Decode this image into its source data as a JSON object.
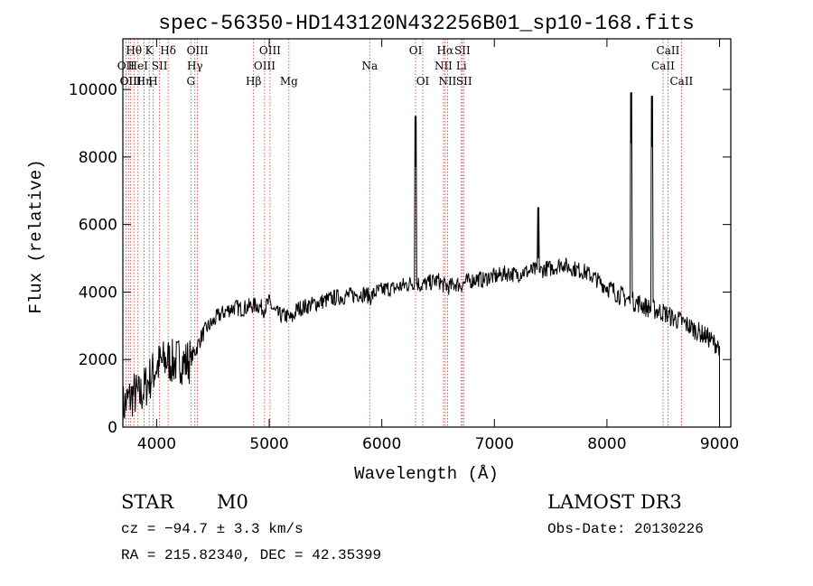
{
  "chart_data": {
    "type": "line",
    "title": "spec-56350-HD143120N432256B01_sp10-168.fits",
    "xlabel": "Wavelength (Å)",
    "ylabel": "Flux (relative)",
    "xlim": [
      3700,
      9100
    ],
    "ylim": [
      0,
      11500
    ],
    "x_ticks": [
      4000,
      5000,
      6000,
      7000,
      8000,
      9000
    ],
    "y_ticks": [
      0,
      2000,
      4000,
      6000,
      8000,
      10000
    ],
    "series": [
      {
        "name": "spectrum",
        "x": [
          3700,
          3750,
          3800,
          3850,
          3900,
          3950,
          4000,
          4050,
          4100,
          4150,
          4200,
          4250,
          4300,
          4350,
          4400,
          4450,
          4500,
          4550,
          4600,
          4650,
          4700,
          4750,
          4800,
          4850,
          4900,
          4950,
          5000,
          5050,
          5100,
          5150,
          5200,
          5250,
          5300,
          5350,
          5400,
          5450,
          5500,
          5550,
          5600,
          5650,
          5700,
          5750,
          5800,
          5850,
          5900,
          5950,
          6000,
          6050,
          6100,
          6150,
          6200,
          6250,
          6300,
          6350,
          6400,
          6450,
          6500,
          6550,
          6600,
          6650,
          6700,
          6750,
          6800,
          6850,
          6900,
          6950,
          7000,
          7050,
          7100,
          7150,
          7200,
          7250,
          7300,
          7350,
          7400,
          7450,
          7500,
          7550,
          7600,
          7650,
          7700,
          7750,
          7800,
          7850,
          7900,
          7950,
          8000,
          8050,
          8100,
          8150,
          8200,
          8250,
          8300,
          8350,
          8400,
          8450,
          8500,
          8550,
          8600,
          8650,
          8700,
          8750,
          8800,
          8850,
          8900,
          8950,
          9000
        ],
        "values": [
          600,
          800,
          1000,
          900,
          1200,
          1500,
          1800,
          1900,
          2000,
          1900,
          2000,
          1900,
          2000,
          2300,
          2700,
          2950,
          3100,
          3300,
          3400,
          3500,
          3550,
          3500,
          3550,
          3600,
          3600,
          3500,
          3700,
          3400,
          3300,
          3300,
          3200,
          3500,
          3550,
          3600,
          3650,
          3700,
          3750,
          3800,
          3850,
          3850,
          3900,
          3900,
          3950,
          3950,
          3850,
          4000,
          4050,
          4100,
          4100,
          4150,
          4200,
          4250,
          4300,
          4200,
          4250,
          4300,
          4350,
          4200,
          4150,
          4250,
          4200,
          4300,
          4350,
          4400,
          4350,
          4450,
          4450,
          4500,
          4550,
          4550,
          4500,
          4600,
          4600,
          4650,
          4600,
          4700,
          4700,
          4750,
          4850,
          4750,
          4700,
          4650,
          4600,
          4500,
          4400,
          4250,
          4150,
          4050,
          3950,
          3850,
          3750,
          3700,
          3650,
          3550,
          3500,
          3450,
          3400,
          3300,
          3200,
          3150,
          3050,
          2950,
          2850,
          2750,
          2650,
          2500,
          2400
        ]
      }
    ],
    "spikes": [
      {
        "x": 6300,
        "value": 9200
      },
      {
        "x": 7390,
        "value": 6500
      },
      {
        "x": 8215,
        "value": 9900
      },
      {
        "x": 8400,
        "value": 9800
      }
    ],
    "line_markers": [
      {
        "wl": 3727,
        "label": "OII",
        "row": 2
      },
      {
        "wl": 3750,
        "label": "OII",
        "row": 3
      },
      {
        "wl": 3770,
        "label": "OIII",
        "row": 3
      },
      {
        "wl": 3798,
        "label": "Hθ",
        "row": 1
      },
      {
        "wl": 3835,
        "label": "HeI",
        "row": 2
      },
      {
        "wl": 3889,
        "label": "Hη",
        "row": 3
      },
      {
        "wl": 3934,
        "label": "K",
        "row": 1
      },
      {
        "wl": 3969,
        "label": "H",
        "row": 3
      },
      {
        "wl": 4026,
        "label": "SII",
        "row": 2
      },
      {
        "wl": 4102,
        "label": "Hδ",
        "row": 1
      },
      {
        "wl": 4304,
        "label": "G",
        "row": 3
      },
      {
        "wl": 4340,
        "label": "Hγ",
        "row": 2
      },
      {
        "wl": 4363,
        "label": "OIII",
        "row": 1
      },
      {
        "wl": 4861,
        "label": "Hβ",
        "row": 3
      },
      {
        "wl": 4959,
        "label": "OIII",
        "row": 2
      },
      {
        "wl": 5007,
        "label": "OIII",
        "row": 1
      },
      {
        "wl": 5175,
        "label": "Mg",
        "row": 3
      },
      {
        "wl": 5893,
        "label": "Na",
        "row": 2
      },
      {
        "wl": 6300,
        "label": "OI",
        "row": 1
      },
      {
        "wl": 6364,
        "label": "OI",
        "row": 3
      },
      {
        "wl": 6548,
        "label": "NII",
        "row": 2
      },
      {
        "wl": 6563,
        "label": "Hα",
        "row": 1
      },
      {
        "wl": 6584,
        "label": "NII",
        "row": 3
      },
      {
        "wl": 6707,
        "label": "Li",
        "row": 2
      },
      {
        "wl": 6716,
        "label": "SII",
        "row": 1
      },
      {
        "wl": 6731,
        "label": "SII",
        "row": 3
      },
      {
        "wl": 8498,
        "label": "CaII",
        "row": 2
      },
      {
        "wl": 8542,
        "label": "CaII",
        "row": 1
      },
      {
        "wl": 8662,
        "label": "CaII",
        "row": 3
      }
    ]
  },
  "info": {
    "class_label": "STAR",
    "subclass": "M0",
    "survey": "LAMOST DR3",
    "redshift": "cz = −94.7 ± 3.3 km/s",
    "obs_date": "Obs-Date: 20130226",
    "coords": "RA = 215.82340, DEC =  42.35399"
  },
  "colors": {
    "spectrum": "#000000",
    "marker_line": "#c0392b",
    "axes": "#000000"
  }
}
